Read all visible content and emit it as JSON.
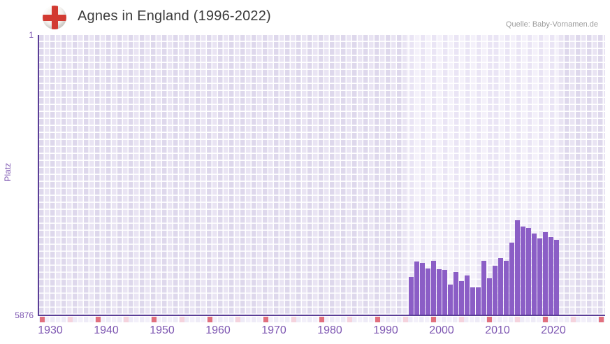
{
  "header": {
    "title": "Agnes in England (1996-2022)",
    "source": "Quelle: Baby-Vornamen.de",
    "flag": "england-st-george-cross"
  },
  "axes": {
    "y_title": "Platz",
    "y_top": "1",
    "y_bottom": "5876",
    "x_tick_labels": [
      "1930",
      "1940",
      "1950",
      "1960",
      "1970",
      "1980",
      "1990",
      "2000",
      "2010",
      "2020"
    ]
  },
  "colors": {
    "bar": "#8b5ec6",
    "axis": "#5b3e97",
    "axis_label": "#7e57b2",
    "title": "#3b3b3b",
    "source": "#9c9c9c",
    "decade_cell": "#e1707e",
    "half_decade_cell": "#f5d3dd",
    "grid_col_a": "#ded8ec",
    "grid_col_b": "#e9e4f3",
    "band_col_a": "#eae5f5",
    "band_col_b": "#f4f1fa",
    "strip_col_a": "#eeebf7",
    "strip_col_b": "#f3f0fa",
    "flag_cross": "#d23a31"
  },
  "chart_data": {
    "type": "bar",
    "title": "Agnes in England (1996-2022)",
    "xlabel": "",
    "ylabel": "Platz",
    "x": [
      1996,
      1997,
      1998,
      1999,
      2000,
      2001,
      2002,
      2003,
      2004,
      2005,
      2006,
      2007,
      2008,
      2009,
      2010,
      2011,
      2012,
      2013,
      2014,
      2015,
      2016,
      2017,
      2018,
      2019,
      2020,
      2021,
      2022
    ],
    "values": [
      5065,
      4750,
      4780,
      4890,
      4730,
      4905,
      4925,
      5230,
      4965,
      5160,
      5035,
      5290,
      5290,
      4730,
      5095,
      4835,
      4675,
      4730,
      4350,
      3880,
      4010,
      4040,
      4165,
      4270,
      4130,
      4230,
      4290
    ],
    "y_axis": {
      "min": 1,
      "max": 5876,
      "inverted": true,
      "meaning": "rank, 1 = most popular"
    },
    "x_axis": {
      "domain_start": 1930,
      "domain_end": 2030,
      "tick_step": 10,
      "half_tick_offset": 5
    },
    "highlight_years": [
      1996,
      2022
    ],
    "grid": true,
    "legend": false
  }
}
